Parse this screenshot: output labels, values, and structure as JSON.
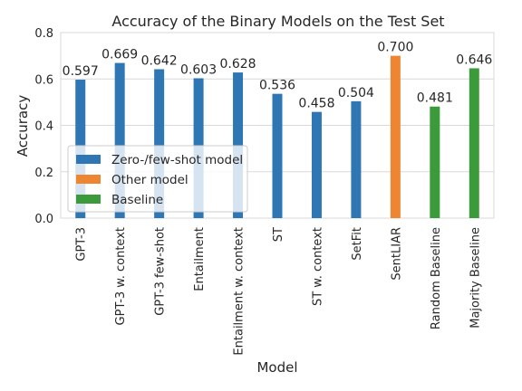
{
  "chart_data": {
    "type": "bar",
    "title": "Accuracy of the Binary Models on the Test Set",
    "xlabel": "Model",
    "ylabel": "Accuracy",
    "ylim": [
      0,
      0.8
    ],
    "yticks": [
      "0.0",
      "0.2",
      "0.4",
      "0.6",
      "0.8"
    ],
    "grid": true,
    "categories": [
      "GPT-3",
      "GPT-3 w. context",
      "GPT-3 few-shot",
      "Entailment",
      "Entailment w. context",
      "ST",
      "ST w. context",
      "SetFit",
      "SentLIAR",
      "Random Baseline",
      "Majority Baseline"
    ],
    "series": [
      {
        "name": "Zero-/few-shot model",
        "color": "#2e77b4",
        "values": [
          0.597,
          0.669,
          0.642,
          0.603,
          0.628,
          0.536,
          0.458,
          0.504,
          null,
          null,
          null
        ]
      },
      {
        "name": "Other model",
        "color": "#ee8531",
        "values": [
          null,
          null,
          null,
          null,
          null,
          null,
          null,
          null,
          0.7,
          null,
          null
        ]
      },
      {
        "name": "Baseline",
        "color": "#3b9b3a",
        "values": [
          null,
          null,
          null,
          null,
          null,
          null,
          null,
          null,
          null,
          0.481,
          0.646
        ]
      }
    ],
    "data_labels": [
      "0.597",
      "0.669",
      "0.642",
      "0.603",
      "0.628",
      "0.536",
      "0.458",
      "0.504",
      "0.700",
      "0.481",
      "0.646"
    ],
    "legend": {
      "placement": "lower-left"
    }
  }
}
